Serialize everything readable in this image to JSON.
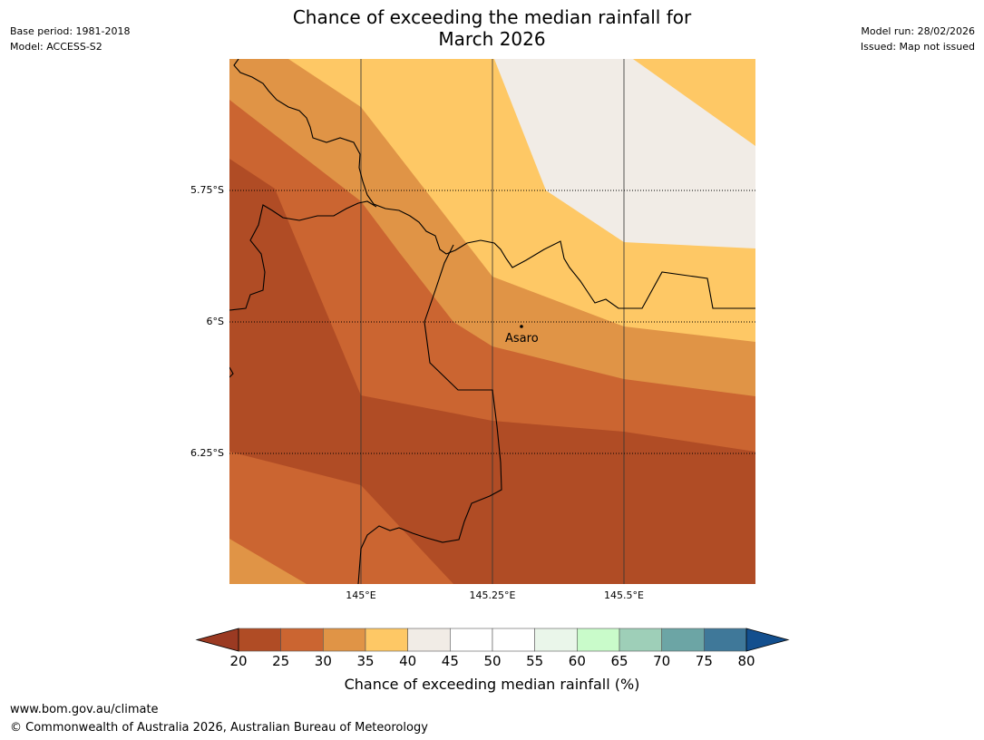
{
  "header": {
    "title_line1": "Chance of exceeding the median rainfall for",
    "title_line2": "March 2026",
    "base_period": "Base period: 1981-2018",
    "model": "Model: ACCESS-S2",
    "model_run": "Model run: 28/02/2026",
    "issued": "Issued: Map not issued"
  },
  "map": {
    "latitude_labels": [
      "5.75°S",
      "6°S",
      "6.25°S"
    ],
    "longitude_labels": [
      "145°E",
      "145.25°E",
      "145.5°E"
    ],
    "place": {
      "name": "Asaro"
    }
  },
  "legend": {
    "title": "Chance of exceeding median rainfall (%)",
    "ticks": [
      "20",
      "25",
      "30",
      "35",
      "40",
      "45",
      "50",
      "55",
      "60",
      "65",
      "70",
      "75",
      "80"
    ],
    "colors": [
      "#b04c25",
      "#cb6531",
      "#e09446",
      "#fec865",
      "#f1ece6",
      "#ffffff",
      "#ffffff",
      "#eaf6ea",
      "#c9fbca",
      "#9ecfb8",
      "#6ca5a5",
      "#3f7899"
    ],
    "under_color": "#9b3a22",
    "over_color": "#134f8e"
  },
  "footer": {
    "website": "www.bom.gov.au/climate",
    "copyright": "© Commonwealth of Australia 2026, Australian Bureau of Meteorology"
  }
}
